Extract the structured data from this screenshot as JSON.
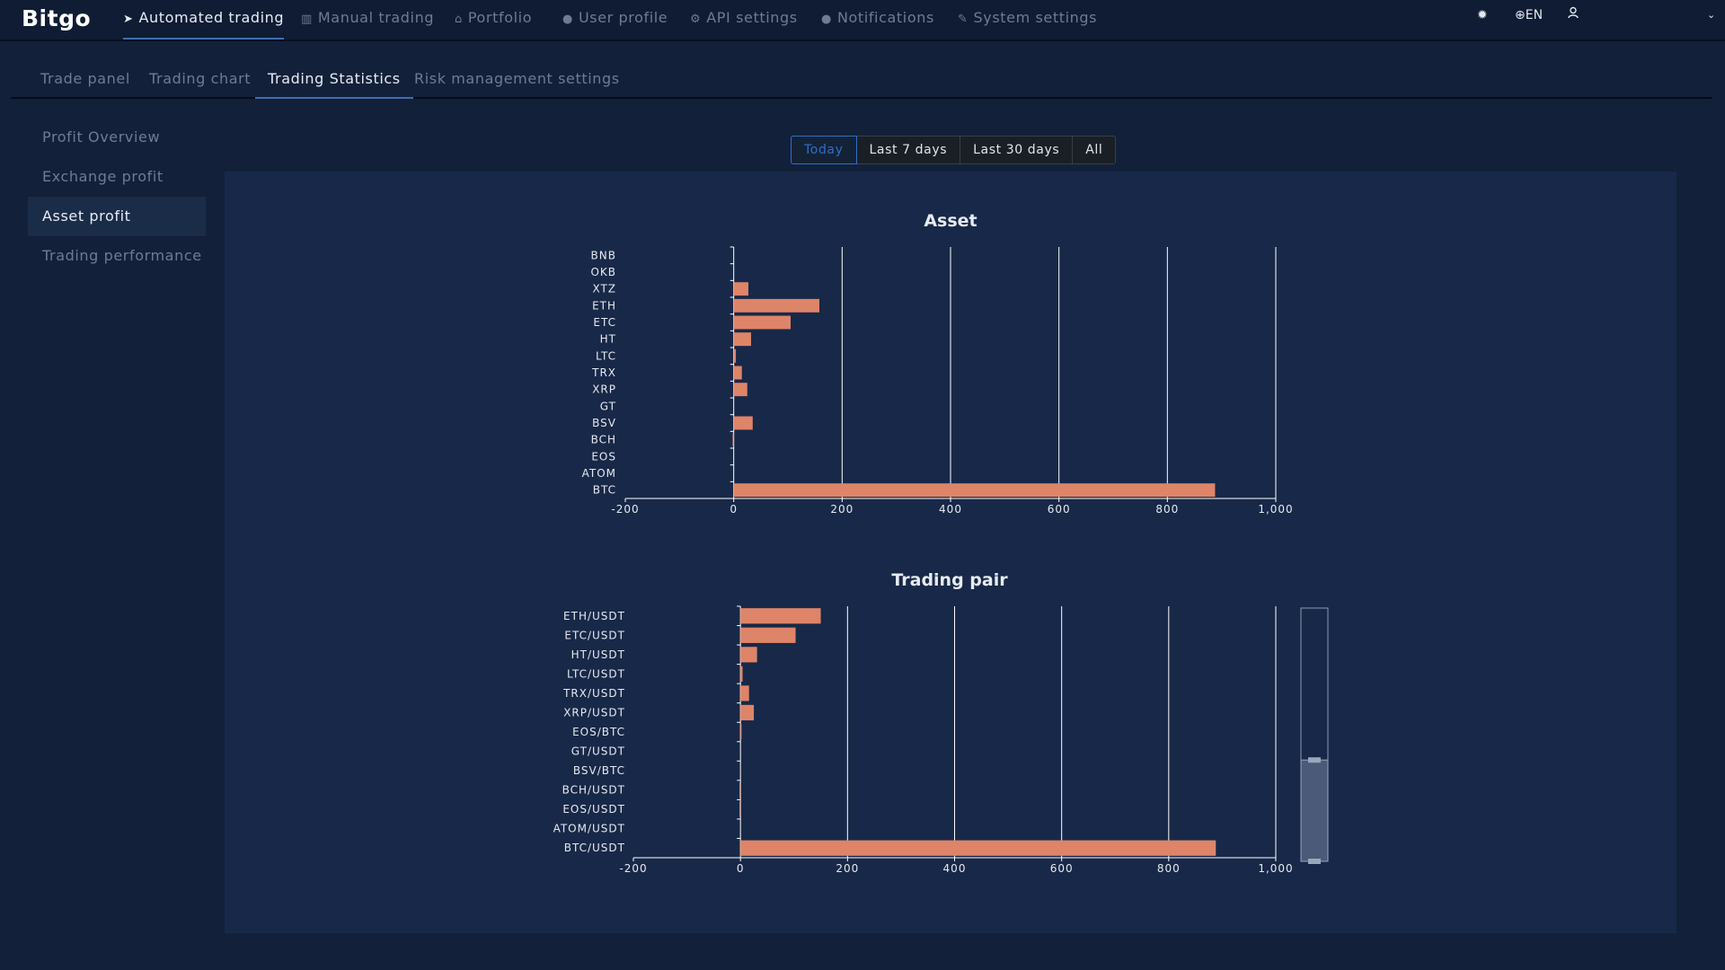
{
  "app": {
    "brand": "Bitgo"
  },
  "nav": {
    "items": [
      {
        "label": "Automated trading",
        "icon": "paper-plane-icon",
        "active": true
      },
      {
        "label": "Manual trading",
        "icon": "bar-chart-icon"
      },
      {
        "label": "Portfolio",
        "icon": "bank-icon"
      },
      {
        "label": "User profile",
        "icon": "user-icon"
      },
      {
        "label": "API settings",
        "icon": "gears-icon"
      },
      {
        "label": "Notifications",
        "icon": "comment-icon"
      },
      {
        "label": "System settings",
        "icon": "wrench-icon"
      }
    ],
    "language": "EN"
  },
  "subtabs": [
    "Trade panel",
    "Trading chart",
    "Trading Statistics",
    "Risk management settings"
  ],
  "side_menu": [
    "Profit Overview",
    "Exchange profit",
    "Asset profit",
    "Trading performance"
  ],
  "range": {
    "options": [
      "Today",
      "Last 7 days",
      "Last 30 days",
      "All"
    ],
    "selected": "Today"
  },
  "colors": {
    "bar": "#de8468",
    "panel": "#182848",
    "grid": "#ffffff",
    "accent": "#2f6fc7"
  },
  "chart_data": [
    {
      "type": "bar",
      "orientation": "horizontal",
      "title": "Asset",
      "categories": [
        "BNB",
        "OKB",
        "XTZ",
        "ETH",
        "ETC",
        "HT",
        "LTC",
        "TRX",
        "XRP",
        "GT",
        "BSV",
        "BCH",
        "EOS",
        "ATOM",
        "BTC"
      ],
      "values": [
        0,
        0,
        27,
        158,
        105,
        32,
        4,
        15,
        25,
        0,
        35,
        -2,
        0,
        0,
        888
      ],
      "xlim": [
        -200,
        1000
      ],
      "xticks": [
        "-200",
        "0",
        "200",
        "400",
        "600",
        "800",
        "1,000"
      ],
      "grid": true
    },
    {
      "type": "bar",
      "orientation": "horizontal",
      "title": "Trading pair",
      "categories": [
        "ETH/USDT",
        "ETC/USDT",
        "HT/USDT",
        "LTC/USDT",
        "TRX/USDT",
        "XRP/USDT",
        "EOS/BTC",
        "GT/USDT",
        "BSV/BTC",
        "BCH/USDT",
        "EOS/USDT",
        "ATOM/USDT",
        "BTC/USDT"
      ],
      "values": [
        150,
        103,
        31,
        4,
        16,
        25,
        2,
        0,
        0,
        -2,
        -2,
        0,
        888
      ],
      "xlim": [
        -200,
        1000
      ],
      "xticks": [
        "-200",
        "0",
        "200",
        "400",
        "600",
        "800",
        "1,000"
      ],
      "grid": true,
      "zoom_slider": {
        "start": 0,
        "end": 0.4
      }
    }
  ]
}
